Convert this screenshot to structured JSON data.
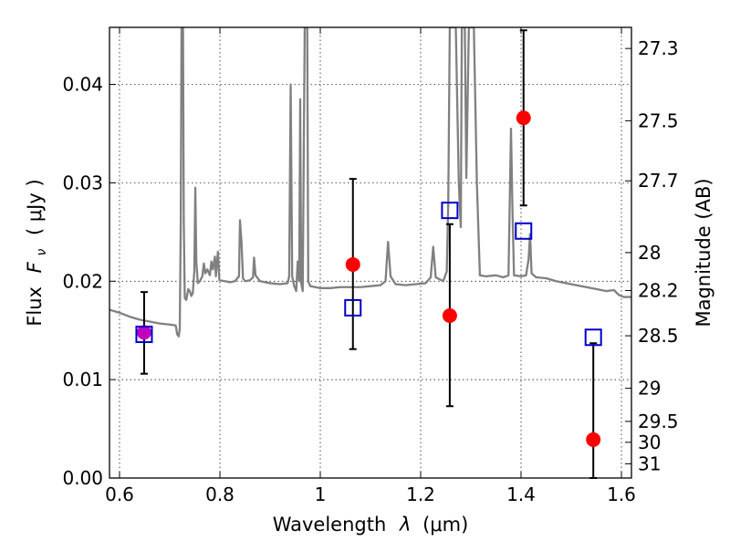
{
  "chart_data": {
    "type": "scatter",
    "xlabel": "Wavelength",
    "xlabel_symbol": "λ",
    "xlabel_unit": "(μm)",
    "ylabel": "Flux",
    "ylabel_symbol": "F",
    "ylabel_symbol_sub": "ν",
    "ylabel_unit": "( μJy )",
    "y2label": "Magnitude (AB)",
    "xlim": [
      0.58,
      1.62
    ],
    "ylim": [
      0.0,
      0.0458
    ],
    "grid": true,
    "x_ticks": [
      {
        "value": 0.6,
        "label": "0.6"
      },
      {
        "value": 0.8,
        "label": "0.8"
      },
      {
        "value": 1.0,
        "label": "1"
      },
      {
        "value": 1.2,
        "label": "1.2"
      },
      {
        "value": 1.4,
        "label": "1.4"
      },
      {
        "value": 1.6,
        "label": "1.6"
      }
    ],
    "y_ticks": [
      {
        "value": 0.0,
        "label": "0.00"
      },
      {
        "value": 0.01,
        "label": "0.01"
      },
      {
        "value": 0.02,
        "label": "0.02"
      },
      {
        "value": 0.03,
        "label": "0.03"
      },
      {
        "value": 0.04,
        "label": "0.04"
      }
    ],
    "magnitude_ticks": [
      {
        "value": 27.3,
        "label": "27.3"
      },
      {
        "value": 27.5,
        "label": "27.5"
      },
      {
        "value": 27.7,
        "label": "27.7"
      },
      {
        "value": 28.0,
        "label": "28"
      },
      {
        "value": 28.2,
        "label": "28.2"
      },
      {
        "value": 28.5,
        "label": "28.5"
      },
      {
        "value": 29.0,
        "label": "29"
      },
      {
        "value": 29.5,
        "label": "29.5"
      },
      {
        "value": 30.0,
        "label": "30"
      },
      {
        "value": 31.0,
        "label": "31"
      }
    ],
    "series": [
      {
        "kind": "line",
        "color": "#808080",
        "points": [
          [
            0.58,
            0.0171
          ],
          [
            0.6,
            0.0168
          ],
          [
            0.62,
            0.0164
          ],
          [
            0.64,
            0.0161
          ],
          [
            0.66,
            0.0159
          ],
          [
            0.68,
            0.0157
          ],
          [
            0.7,
            0.0156
          ],
          [
            0.712,
            0.0155
          ],
          [
            0.715,
            0.0146
          ],
          [
            0.718,
            0.0144
          ],
          [
            0.72,
            0.0152
          ],
          [
            0.722,
            0.026
          ],
          [
            0.7235,
            0.0458
          ],
          [
            0.7265,
            0.0458
          ],
          [
            0.728,
            0.026
          ],
          [
            0.73,
            0.0183
          ],
          [
            0.733,
            0.0181
          ],
          [
            0.737,
            0.0192
          ],
          [
            0.74,
            0.019
          ],
          [
            0.743,
            0.0185
          ],
          [
            0.746,
            0.0188
          ],
          [
            0.749,
            0.021
          ],
          [
            0.751,
            0.0295
          ],
          [
            0.753,
            0.022
          ],
          [
            0.756,
            0.0198
          ],
          [
            0.76,
            0.02
          ],
          [
            0.765,
            0.0205
          ],
          [
            0.768,
            0.0218
          ],
          [
            0.771,
            0.0208
          ],
          [
            0.775,
            0.0212
          ],
          [
            0.78,
            0.0206
          ],
          [
            0.783,
            0.022
          ],
          [
            0.786,
            0.0212
          ],
          [
            0.79,
            0.0225
          ],
          [
            0.792,
            0.0205
          ],
          [
            0.796,
            0.023
          ],
          [
            0.799,
            0.0201
          ],
          [
            0.81,
            0.02
          ],
          [
            0.82,
            0.0199
          ],
          [
            0.83,
            0.02
          ],
          [
            0.838,
            0.0205
          ],
          [
            0.84,
            0.0262
          ],
          [
            0.843,
            0.024
          ],
          [
            0.846,
            0.0203
          ],
          [
            0.85,
            0.02
          ],
          [
            0.86,
            0.0201
          ],
          [
            0.866,
            0.0204
          ],
          [
            0.868,
            0.0224
          ],
          [
            0.871,
            0.0206
          ],
          [
            0.88,
            0.02
          ],
          [
            0.9,
            0.0198
          ],
          [
            0.92,
            0.0197
          ],
          [
            0.935,
            0.0198
          ],
          [
            0.938,
            0.0205
          ],
          [
            0.941,
            0.04
          ],
          [
            0.944,
            0.0205
          ],
          [
            0.948,
            0.0195
          ],
          [
            0.952,
            0.019
          ],
          [
            0.955,
            0.022
          ],
          [
            0.958,
            0.02
          ],
          [
            0.96,
            0.0385
          ],
          [
            0.962,
            0.0198
          ],
          [
            0.965,
            0.019
          ],
          [
            0.969,
            0.0458
          ],
          [
            0.974,
            0.0458
          ],
          [
            0.976,
            0.02
          ],
          [
            0.98,
            0.0195
          ],
          [
            1.0,
            0.0193
          ],
          [
            1.02,
            0.0193
          ],
          [
            1.04,
            0.0194
          ],
          [
            1.06,
            0.0194
          ],
          [
            1.08,
            0.0194
          ],
          [
            1.1,
            0.0195
          ],
          [
            1.12,
            0.0196
          ],
          [
            1.13,
            0.02
          ],
          [
            1.135,
            0.024
          ],
          [
            1.14,
            0.0205
          ],
          [
            1.15,
            0.0197
          ],
          [
            1.17,
            0.0196
          ],
          [
            1.19,
            0.0197
          ],
          [
            1.21,
            0.0198
          ],
          [
            1.22,
            0.0204
          ],
          [
            1.225,
            0.0235
          ],
          [
            1.23,
            0.0204
          ],
          [
            1.245,
            0.02
          ],
          [
            1.252,
            0.021
          ],
          [
            1.255,
            0.028
          ],
          [
            1.258,
            0.0458
          ],
          [
            1.27,
            0.0458
          ],
          [
            1.276,
            0.03
          ],
          [
            1.28,
            0.0255
          ],
          [
            1.282,
            0.0458
          ],
          [
            1.288,
            0.0458
          ],
          [
            1.291,
            0.0305
          ],
          [
            1.296,
            0.0458
          ],
          [
            1.306,
            0.0458
          ],
          [
            1.312,
            0.03
          ],
          [
            1.318,
            0.0206
          ],
          [
            1.33,
            0.0205
          ],
          [
            1.35,
            0.0206
          ],
          [
            1.365,
            0.0204
          ],
          [
            1.375,
            0.0206
          ],
          [
            1.38,
            0.0355
          ],
          [
            1.383,
            0.027
          ],
          [
            1.386,
            0.0206
          ],
          [
            1.4,
            0.0205
          ],
          [
            1.41,
            0.0206
          ],
          [
            1.415,
            0.0222
          ],
          [
            1.418,
            0.0248
          ],
          [
            1.421,
            0.0208
          ],
          [
            1.43,
            0.0204
          ],
          [
            1.45,
            0.0203
          ],
          [
            1.47,
            0.02
          ],
          [
            1.49,
            0.0198
          ],
          [
            1.51,
            0.0196
          ],
          [
            1.53,
            0.0194
          ],
          [
            1.55,
            0.0192
          ],
          [
            1.57,
            0.019
          ],
          [
            1.585,
            0.0191
          ],
          [
            1.595,
            0.0186
          ],
          [
            1.605,
            0.0184
          ],
          [
            1.62,
            0.0184
          ]
        ]
      },
      {
        "kind": "markers",
        "marker": "circle",
        "color": "#ff0000",
        "points": [
          {
            "x": 1.065,
            "y": 0.0217,
            "yerr": [
              0.0131,
              0.0304
            ]
          },
          {
            "x": 1.258,
            "y": 0.0165,
            "yerr": [
              0.0073,
              0.0258
            ]
          },
          {
            "x": 1.405,
            "y": 0.0366,
            "yerr": [
              0.0277,
              0.0455
            ]
          },
          {
            "x": 1.544,
            "y": 0.0039,
            "yerr": [
              0.0,
              0.0137
            ]
          }
        ]
      },
      {
        "kind": "markers",
        "marker": "circle",
        "color": "#c000c0",
        "points": [
          {
            "x": 0.649,
            "y": 0.0148,
            "yerr": [
              0.0106,
              0.0189
            ]
          }
        ]
      },
      {
        "kind": "markers",
        "marker": "square-open",
        "color": "#0000cc",
        "points": [
          {
            "x": 0.649,
            "y": 0.0146
          },
          {
            "x": 1.065,
            "y": 0.0173
          },
          {
            "x": 1.258,
            "y": 0.0272
          },
          {
            "x": 1.405,
            "y": 0.0251
          },
          {
            "x": 1.544,
            "y": 0.0143
          }
        ]
      }
    ]
  }
}
